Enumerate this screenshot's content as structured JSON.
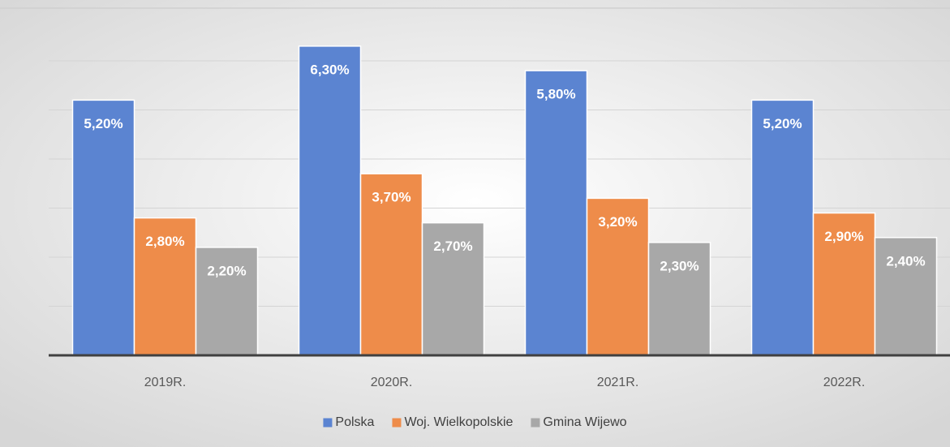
{
  "chart_data": {
    "type": "bar",
    "categories": [
      "2019R.",
      "2020R.",
      "2021R.",
      "2022R."
    ],
    "series": [
      {
        "name": "Polska",
        "color": "#5b84d1",
        "values": [
          5.2,
          6.3,
          5.8,
          5.2
        ],
        "value_labels": [
          "5,20%",
          "6,30%",
          "5,80%",
          "5,20%"
        ]
      },
      {
        "name": "Woj. Wielkopolskie",
        "color": "#ee8c4a",
        "values": [
          2.8,
          3.7,
          3.2,
          2.9
        ],
        "value_labels": [
          "2,80%",
          "3,70%",
          "3,20%",
          "2,90%"
        ]
      },
      {
        "name": "Gmina Wijewo",
        "color": "#a8a8a8",
        "values": [
          2.2,
          2.7,
          2.3,
          2.4
        ],
        "value_labels": [
          "2,20%",
          "2,70%",
          "2,30%",
          "2,40%"
        ]
      }
    ],
    "ylim": [
      0,
      7
    ],
    "yticks": [
      0,
      1,
      2,
      3,
      4,
      5,
      6
    ],
    "grid": true,
    "legend": "bottom"
  }
}
